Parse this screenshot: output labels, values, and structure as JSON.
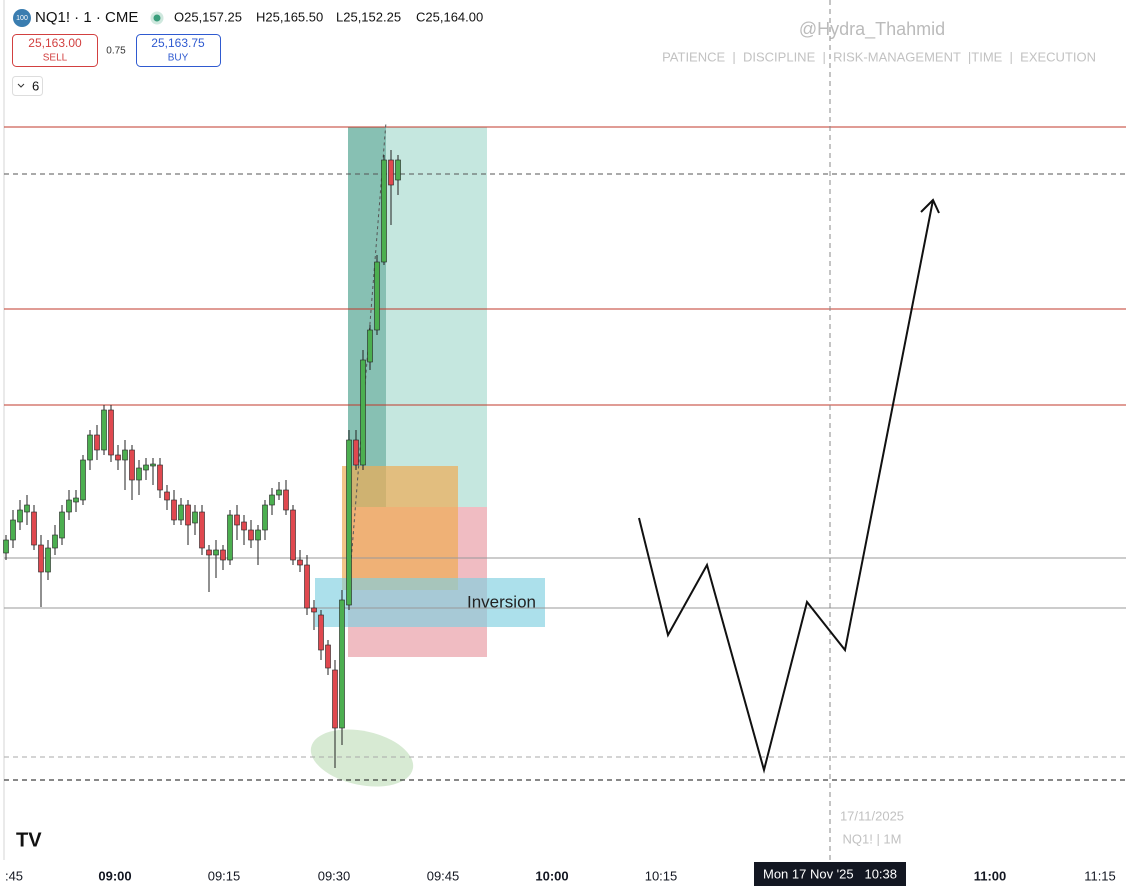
{
  "header": {
    "badge": "100",
    "symbol": "NQ1! · 1 · CME",
    "open": "O25,157.25",
    "high": "H25,165.50",
    "low": "L25,152.25",
    "close": "C25,164.00"
  },
  "trade": {
    "sell_price": "25,163.00",
    "sell": "SELL",
    "spread": "0.75",
    "buy_price": "25,163.75",
    "buy": "BUY"
  },
  "indicators": {
    "count": "6"
  },
  "watermark": {
    "handle": "@Hydra_Thahmid",
    "motto": "PATIENCE  |  DISCIPLINE  |  RISK-MANAGEMENT  |TIME  |  EXECUTION"
  },
  "annotation": {
    "text": "Inversion"
  },
  "footer": {
    "date": "17/11/2025",
    "symbol": "NQ1! | 1M"
  },
  "x_axis": {
    "labels": [
      ":45",
      "09:00",
      "09:15",
      "09:30",
      "09:45",
      "10:00",
      "10:15",
      "11:00",
      "11:15"
    ],
    "crosshair": "Mon 17 Nov '25   10:38"
  }
}
